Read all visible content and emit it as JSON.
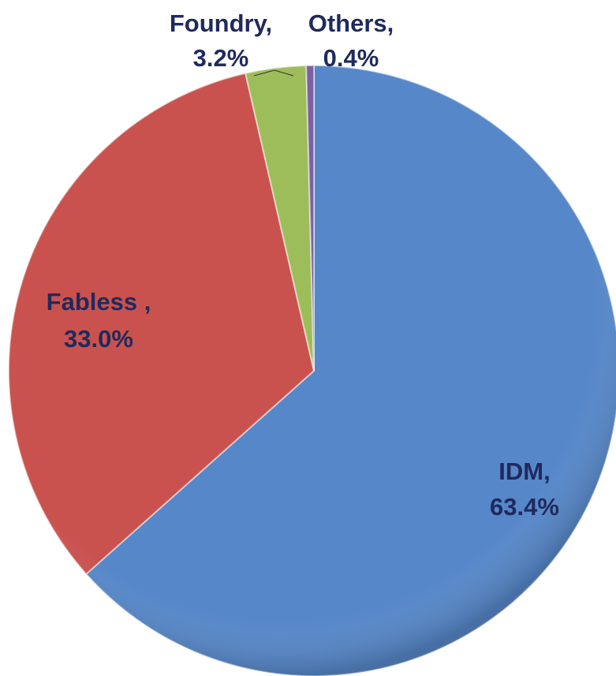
{
  "chart_data": {
    "type": "pie",
    "categories": [
      "IDM,",
      "Fabless ,",
      "Foundry,",
      "Others,"
    ],
    "values": [
      63.4,
      33.0,
      3.2,
      0.4
    ],
    "value_labels": [
      "63.4%",
      "33.0%",
      "3.2%",
      "0.4%"
    ],
    "colors": [
      "#5687c9",
      "#c9524f",
      "#9dbd5a",
      "#7d5fa3"
    ]
  }
}
